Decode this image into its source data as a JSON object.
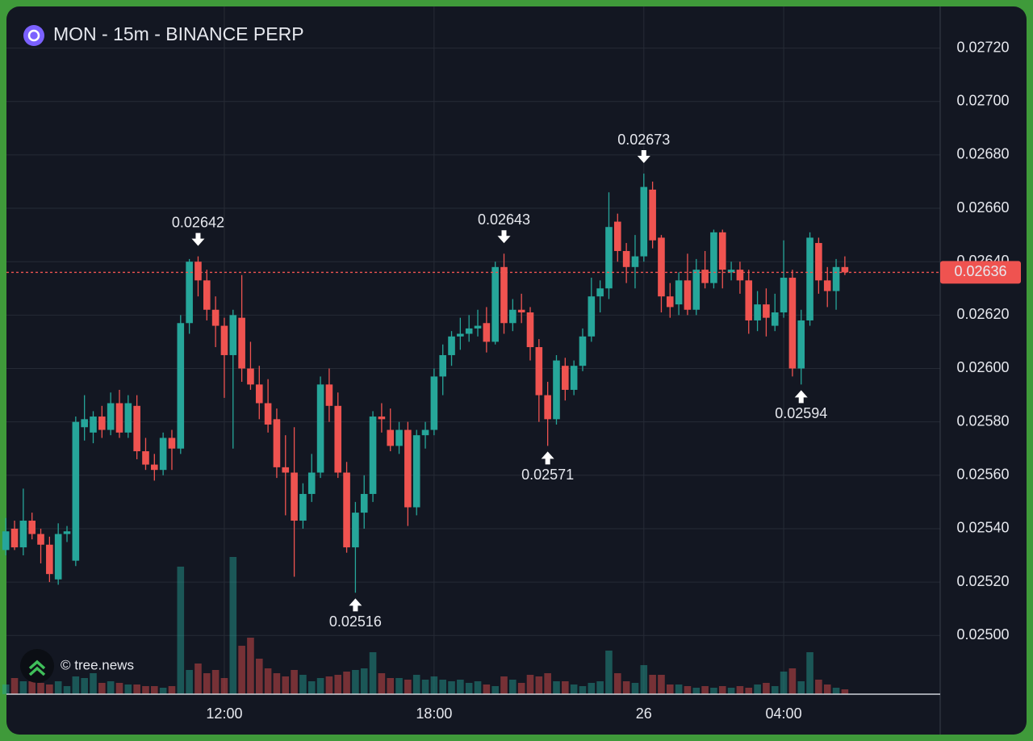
{
  "chart_data": {
    "type": "candlestick",
    "title": "MON - 15m - BINANCE PERP",
    "watermark": "© tree.news",
    "up_color": "#26a69a",
    "down_color": "#ef5350",
    "grid": true,
    "categories": [
      null,
      null,
      null,
      null,
      null,
      null,
      null,
      null,
      null,
      null,
      null,
      null,
      null,
      null,
      null,
      null,
      null,
      null,
      null,
      null,
      null,
      null,
      null,
      null,
      null,
      "12:00",
      null,
      null,
      null,
      null,
      null,
      null,
      null,
      null,
      null,
      null,
      null,
      null,
      null,
      null,
      null,
      null,
      null,
      null,
      null,
      null,
      null,
      null,
      null,
      "18:00",
      null,
      null,
      null,
      null,
      null,
      null,
      null,
      null,
      null,
      null,
      null,
      null,
      null,
      null,
      null,
      null,
      null,
      null,
      null,
      null,
      null,
      null,
      null,
      "26",
      null,
      null,
      null,
      null,
      null,
      null,
      null,
      null,
      null,
      null,
      null,
      null,
      null,
      null,
      null,
      "04:00",
      null,
      null,
      null,
      null,
      null,
      null,
      null
    ],
    "open": [
      0.02532,
      0.0254,
      0.02533,
      0.02543,
      0.02538,
      0.02534,
      0.02521,
      0.02538,
      0.02528,
      0.02578,
      0.02576,
      0.02582,
      0.02577,
      0.02587,
      0.02576,
      0.02586,
      0.02569,
      0.02564,
      0.02562,
      0.02574,
      0.0257,
      0.02617,
      0.0264,
      0.02633,
      0.02622,
      0.02616,
      0.02605,
      0.02619,
      0.026,
      0.02594,
      0.02587,
      0.02581,
      0.02563,
      0.02561,
      0.02543,
      0.02553,
      0.02561,
      0.02594,
      0.02586,
      0.02561,
      0.02533,
      0.02546,
      0.02553,
      0.02582,
      0.02577,
      0.02571,
      0.02577,
      0.02548,
      0.02575,
      0.02577,
      0.02597,
      0.02605,
      0.02612,
      0.02613,
      0.02615,
      0.02617,
      0.0261,
      0.02638,
      0.02617,
      0.02622,
      0.02621,
      0.02608,
      0.0259,
      0.02581,
      0.02601,
      0.02592,
      0.02601,
      0.02612,
      0.02627,
      0.0263,
      0.02655,
      0.02644,
      0.02638,
      0.02642,
      0.02667,
      0.02649,
      0.02627,
      0.02624,
      0.02633,
      0.02622,
      0.02637,
      0.02632,
      0.02651,
      0.02636,
      0.02637,
      0.02633,
      0.02618,
      0.02624,
      0.02616,
      0.02621,
      0.02634,
      0.026,
      0.02618,
      0.02647,
      0.02633,
      0.02629,
      0.02638
    ],
    "high": [
      0.02544,
      0.02543,
      0.02555,
      0.02546,
      0.0254,
      0.02537,
      0.02542,
      0.02541,
      0.02582,
      0.0259,
      0.02584,
      0.02586,
      0.02591,
      0.02592,
      0.0259,
      0.0259,
      0.02574,
      0.02568,
      0.02576,
      0.02577,
      0.0262,
      0.02641,
      0.02642,
      0.02637,
      0.02627,
      0.02619,
      0.02622,
      0.02635,
      0.0261,
      0.02601,
      0.02596,
      0.02585,
      0.02575,
      0.02578,
      0.02557,
      0.02568,
      0.02597,
      0.026,
      0.02591,
      0.02565,
      0.0255,
      0.0256,
      0.02584,
      0.02587,
      0.02585,
      0.0258,
      0.0258,
      0.02577,
      0.0258,
      0.026,
      0.02609,
      0.02614,
      0.02619,
      0.0262,
      0.02622,
      0.02623,
      0.0264,
      0.02643,
      0.02626,
      0.02628,
      0.02623,
      0.02611,
      0.02595,
      0.02605,
      0.02604,
      0.02603,
      0.02615,
      0.02634,
      0.02633,
      0.02666,
      0.02658,
      0.02647,
      0.0265,
      0.02673,
      0.0267,
      0.0265,
      0.02632,
      0.02636,
      0.02643,
      0.02641,
      0.02644,
      0.02652,
      0.02652,
      0.0264,
      0.0264,
      0.02637,
      0.02629,
      0.0263,
      0.02628,
      0.02648,
      0.02637,
      0.02622,
      0.02651,
      0.02649,
      0.02638,
      0.02641,
      0.02642
    ],
    "low": [
      0.0253,
      0.02532,
      0.0253,
      0.02536,
      0.02527,
      0.0252,
      0.02519,
      0.02535,
      0.02526,
      0.02573,
      0.02572,
      0.02574,
      0.02575,
      0.02574,
      0.02574,
      0.02566,
      0.02562,
      0.02558,
      0.0256,
      0.02562,
      0.02568,
      0.02613,
      0.02627,
      0.02618,
      0.02608,
      0.02589,
      0.0257,
      0.02595,
      0.02592,
      0.02581,
      0.02576,
      0.02559,
      0.02545,
      0.02522,
      0.0254,
      0.0255,
      0.02559,
      0.0258,
      0.02559,
      0.02531,
      0.02516,
      0.0254,
      0.0255,
      0.02576,
      0.02569,
      0.02568,
      0.02541,
      0.02545,
      0.0257,
      0.02575,
      0.0259,
      0.02601,
      0.02607,
      0.0261,
      0.02612,
      0.02606,
      0.02609,
      0.02613,
      0.02614,
      0.02617,
      0.02603,
      0.0258,
      0.02571,
      0.02579,
      0.02588,
      0.0259,
      0.02599,
      0.0261,
      0.02621,
      0.02626,
      0.0264,
      0.02632,
      0.0263,
      0.0264,
      0.02645,
      0.02621,
      0.02619,
      0.0262,
      0.0262,
      0.0262,
      0.0263,
      0.0263,
      0.0263,
      0.02633,
      0.02628,
      0.02613,
      0.02614,
      0.02612,
      0.02614,
      0.02619,
      0.02597,
      0.02594,
      0.02616,
      0.02628,
      0.02623,
      0.02622,
      0.02635
    ],
    "close": [
      0.02539,
      0.02533,
      0.02543,
      0.02538,
      0.02534,
      0.02523,
      0.02538,
      0.02539,
      0.0258,
      0.02581,
      0.02582,
      0.02577,
      0.02587,
      0.02576,
      0.02587,
      0.02569,
      0.02564,
      0.02562,
      0.02574,
      0.0257,
      0.02617,
      0.0264,
      0.02633,
      0.02622,
      0.02616,
      0.02605,
      0.0262,
      0.026,
      0.02594,
      0.02587,
      0.02579,
      0.02563,
      0.02561,
      0.02543,
      0.02553,
      0.02561,
      0.02594,
      0.02586,
      0.02561,
      0.02533,
      0.02546,
      0.02553,
      0.02582,
      0.02581,
      0.02571,
      0.02577,
      0.02548,
      0.02575,
      0.02577,
      0.02597,
      0.02605,
      0.02612,
      0.02613,
      0.02615,
      0.02616,
      0.0261,
      0.02638,
      0.02617,
      0.02622,
      0.02621,
      0.02608,
      0.0259,
      0.02581,
      0.02603,
      0.02592,
      0.02601,
      0.02612,
      0.02627,
      0.0263,
      0.02653,
      0.02644,
      0.02638,
      0.02642,
      0.02668,
      0.02648,
      0.02627,
      0.02623,
      0.02633,
      0.02622,
      0.02637,
      0.02632,
      0.02651,
      0.02637,
      0.02637,
      0.02633,
      0.02618,
      0.02624,
      0.02619,
      0.02621,
      0.02634,
      0.026,
      0.02618,
      0.02649,
      0.02633,
      0.02629,
      0.02638,
      0.02636
    ],
    "volume": [
      12,
      20,
      16,
      16,
      14,
      12,
      16,
      10,
      22,
      20,
      26,
      14,
      16,
      14,
      12,
      12,
      10,
      10,
      8,
      10,
      158,
      30,
      38,
      26,
      30,
      20,
      170,
      60,
      70,
      44,
      32,
      26,
      22,
      30,
      24,
      16,
      20,
      22,
      24,
      28,
      30,
      32,
      52,
      26,
      20,
      20,
      18,
      24,
      18,
      22,
      18,
      16,
      18,
      14,
      16,
      12,
      10,
      22,
      18,
      14,
      24,
      22,
      26,
      16,
      16,
      12,
      10,
      14,
      16,
      54,
      26,
      16,
      14,
      36,
      24,
      24,
      12,
      12,
      10,
      8,
      10,
      8,
      10,
      8,
      10,
      8,
      12,
      14,
      10,
      28,
      32,
      16,
      52,
      18,
      12,
      8,
      6
    ],
    "ylim": [
      0.02478,
      0.02735
    ],
    "yticks": [
      {
        "value": 0.025,
        "label": "0.02500"
      },
      {
        "value": 0.0252,
        "label": "0.02520"
      },
      {
        "value": 0.0254,
        "label": "0.02540"
      },
      {
        "value": 0.0256,
        "label": "0.02560"
      },
      {
        "value": 0.0258,
        "label": "0.02580"
      },
      {
        "value": 0.026,
        "label": "0.02600"
      },
      {
        "value": 0.0262,
        "label": "0.02620"
      },
      {
        "value": 0.0264,
        "label": "0.02640"
      },
      {
        "value": 0.0266,
        "label": "0.02660"
      },
      {
        "value": 0.0268,
        "label": "0.02680"
      },
      {
        "value": 0.027,
        "label": "0.02700"
      },
      {
        "value": 0.0272,
        "label": "0.02720"
      }
    ],
    "high_labels": [
      0.02642,
      0.02643,
      0.02673
    ],
    "low_labels": [
      0.02516,
      0.02571,
      0.02594
    ],
    "last_price": 0.02636
  }
}
